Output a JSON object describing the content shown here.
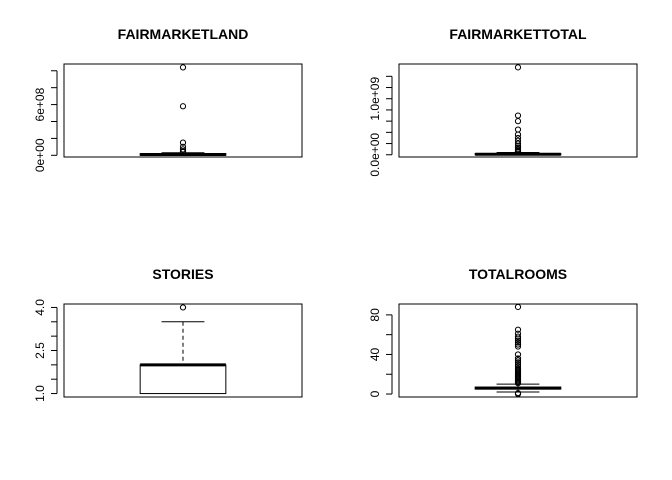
{
  "chart_data": [
    {
      "type": "boxplot",
      "title": "FAIRMARKETLAND",
      "xlabel": "",
      "ylabel": "",
      "ylim": [
        -20000000,
        1080000000
      ],
      "y_ticks": [
        0,
        200000000,
        400000000,
        600000000,
        800000000,
        1000000000
      ],
      "y_tick_labels": [
        "0e+00",
        "",
        "",
        "6e+08",
        "",
        ""
      ],
      "box": {
        "min": 0,
        "q1": 0,
        "median": 10000000,
        "q3": 20000000,
        "max": 30000000
      },
      "outliers": [
        1040000000,
        580000000,
        150000000,
        100000000,
        70000000,
        50000000,
        40000000
      ]
    },
    {
      "type": "boxplot",
      "title": "FAIRMARKETTOTAL",
      "xlabel": "",
      "ylabel": "",
      "ylim": [
        -40000000,
        1620000000
      ],
      "y_ticks": [
        0,
        200000000,
        400000000,
        600000000,
        800000000,
        1000000000,
        1200000000,
        1400000000
      ],
      "y_tick_labels": [
        "0.0e+00",
        "",
        "",
        "",
        "",
        "1.0e+09",
        "",
        ""
      ],
      "box": {
        "min": 0,
        "q1": 0,
        "median": 10000000,
        "q3": 20000000,
        "max": 40000000
      },
      "outliers": [
        1560000000,
        700000000,
        600000000,
        450000000,
        360000000,
        300000000,
        250000000,
        200000000,
        160000000,
        130000000,
        100000000,
        80000000,
        60000000,
        50000000
      ]
    },
    {
      "type": "boxplot",
      "title": "STORIES",
      "xlabel": "",
      "ylabel": "",
      "ylim": [
        0.88,
        4.12
      ],
      "y_ticks": [
        1.0,
        1.5,
        2.0,
        2.5,
        3.0,
        3.5,
        4.0
      ],
      "y_tick_labels": [
        "1.0",
        "",
        "",
        "2.5",
        "",
        "",
        "4.0"
      ],
      "box": {
        "min": 1.0,
        "q1": 1.0,
        "median": 2.0,
        "q3": 2.0,
        "max": 3.5
      },
      "outliers": [
        4.0
      ]
    },
    {
      "type": "boxplot",
      "title": "TOTALROOMS",
      "xlabel": "",
      "ylabel": "",
      "ylim": [
        -3,
        91
      ],
      "y_ticks": [
        0,
        20,
        40,
        60,
        80
      ],
      "y_tick_labels": [
        "0",
        "",
        "40",
        "",
        "80"
      ],
      "box": {
        "min": 2,
        "q1": 5,
        "median": 6,
        "q3": 7,
        "max": 10
      },
      "outliers": [
        88,
        65,
        61,
        58,
        56,
        54,
        52,
        50,
        48,
        40,
        36,
        34,
        32,
        30,
        28,
        26,
        25,
        24,
        23,
        22,
        21,
        20,
        19,
        18,
        17,
        16,
        15,
        14,
        13,
        12,
        11,
        0,
        1
      ]
    }
  ]
}
